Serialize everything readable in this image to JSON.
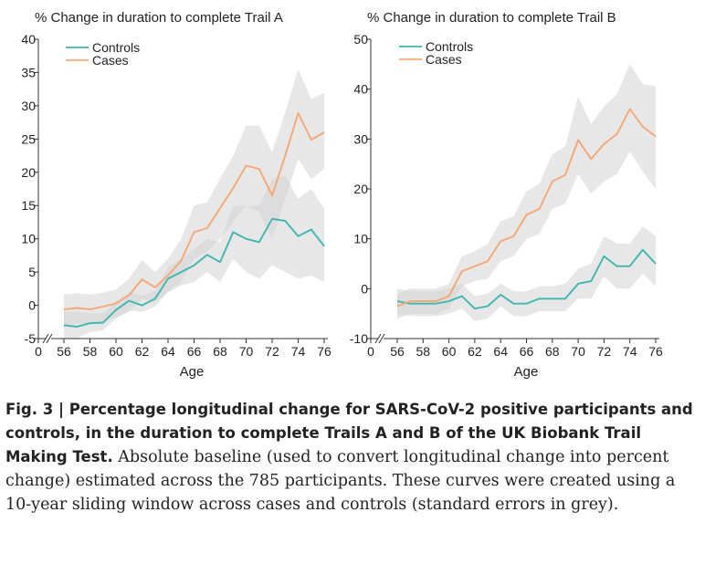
{
  "colors": {
    "controls": "#3fb6b0",
    "cases": "#f4a874",
    "band": "#d3d3d3"
  },
  "xlabel": "Age",
  "caption": {
    "fig_label": "Fig. 3",
    "separator": " | ",
    "bold": "Percentage longitudinal change for SARS-CoV-2 positive participants and controls, in the duration to complete Trails A and B of the UK Biobank Trail Making Test.",
    "body": " Absolute baseline (used to convert longitudinal change into percent change) estimated across the 785 participants. These curves were created using a 10-year sliding window across cases and controls (standard errors in grey)."
  },
  "chart_data": [
    {
      "type": "line",
      "title": "% Change in duration to complete Trail A",
      "xlabel": "Age",
      "ylabel": "",
      "xticks": [
        "0",
        "56",
        "58",
        "60",
        "62",
        "64",
        "66",
        "68",
        "70",
        "72",
        "74",
        "76"
      ],
      "xrange": [
        56,
        76
      ],
      "ylim": [
        -5,
        40
      ],
      "yticks": [
        -5,
        0,
        5,
        10,
        15,
        20,
        25,
        30,
        35,
        40
      ],
      "legend": "top-left",
      "x": [
        56,
        57,
        58,
        59,
        60,
        61,
        62,
        63,
        64,
        65,
        66,
        67,
        68,
        69,
        70,
        71,
        72,
        73,
        74,
        75,
        76
      ],
      "series": [
        {
          "name": "Controls",
          "values": [
            -3.0,
            -3.2,
            -2.7,
            -2.6,
            -0.7,
            0.7,
            0.0,
            1.0,
            4.0,
            5.0,
            6.0,
            7.6,
            6.5,
            11.0,
            10.0,
            9.5,
            13.0,
            12.7,
            10.4,
            11.4,
            8.9
          ],
          "lower": [
            -5.0,
            -5.0,
            -4.0,
            -3.8,
            -2.0,
            -0.8,
            -1.0,
            -0.2,
            2.0,
            3.0,
            3.5,
            5.0,
            3.5,
            7.0,
            5.0,
            4.0,
            6.0,
            5.0,
            4.0,
            4.5,
            3.5
          ],
          "upper": [
            -1.0,
            -1.0,
            -1.2,
            -1.2,
            0.6,
            2.0,
            1.5,
            2.2,
            5.8,
            7.0,
            8.5,
            10.0,
            9.5,
            15.0,
            15.0,
            15.0,
            19.0,
            19.5,
            16.0,
            17.5,
            14.5
          ]
        },
        {
          "name": "Cases",
          "values": [
            -0.6,
            -0.4,
            -0.6,
            -0.2,
            0.3,
            1.5,
            3.9,
            2.7,
            4.5,
            6.7,
            11.0,
            11.6,
            14.6,
            17.6,
            21.0,
            20.5,
            16.5,
            22.5,
            28.9,
            24.9,
            26.0
          ],
          "lower": [
            -3.0,
            -2.8,
            -2.8,
            -2.5,
            -1.8,
            -1.0,
            1.0,
            0.5,
            2.0,
            3.5,
            7.0,
            8.0,
            10.0,
            12.5,
            15.0,
            14.0,
            10.0,
            16.0,
            22.0,
            19.0,
            20.5
          ],
          "upper": [
            1.6,
            1.8,
            1.6,
            1.9,
            2.4,
            4.0,
            6.8,
            5.0,
            7.0,
            10.0,
            15.0,
            15.5,
            19.0,
            22.5,
            27.0,
            27.0,
            23.0,
            29.0,
            35.5,
            31.0,
            32.0
          ]
        }
      ]
    },
    {
      "type": "line",
      "title": "% Change in duration to complete Trail B",
      "xlabel": "Age",
      "ylabel": "",
      "xticks": [
        "0",
        "56",
        "58",
        "60",
        "62",
        "64",
        "66",
        "68",
        "70",
        "72",
        "74",
        "76"
      ],
      "xrange": [
        56,
        76
      ],
      "ylim": [
        -10,
        50
      ],
      "yticks": [
        -10,
        0,
        10,
        20,
        30,
        40,
        50
      ],
      "legend": "top-left",
      "x": [
        56,
        57,
        58,
        59,
        60,
        61,
        62,
        63,
        64,
        65,
        66,
        67,
        68,
        69,
        70,
        71,
        72,
        73,
        74,
        75,
        76
      ],
      "series": [
        {
          "name": "Controls",
          "values": [
            -2.5,
            -3.0,
            -3.0,
            -3.0,
            -2.5,
            -1.5,
            -4.0,
            -3.5,
            -1.2,
            -3.0,
            -3.0,
            -2.0,
            -2.0,
            -2.0,
            1.0,
            1.5,
            6.5,
            4.5,
            4.5,
            7.8,
            5.0
          ],
          "lower": [
            -5.0,
            -5.5,
            -5.5,
            -5.5,
            -5.0,
            -4.0,
            -6.5,
            -6.0,
            -3.5,
            -5.5,
            -5.5,
            -4.5,
            -4.5,
            -4.5,
            -2.0,
            -2.0,
            2.5,
            0.0,
            0.0,
            3.0,
            0.5
          ],
          "upper": [
            0.0,
            -0.5,
            -0.5,
            -0.5,
            0.0,
            1.0,
            -1.5,
            -1.0,
            1.0,
            -0.5,
            -0.5,
            0.5,
            0.5,
            1.0,
            4.0,
            5.0,
            10.5,
            9.0,
            9.0,
            12.5,
            10.5
          ]
        },
        {
          "name": "Cases",
          "values": [
            -3.5,
            -2.5,
            -2.5,
            -2.5,
            -1.5,
            3.5,
            4.5,
            5.5,
            9.5,
            10.5,
            14.8,
            16.0,
            21.5,
            22.8,
            29.8,
            26.0,
            29.0,
            31.0,
            36.0,
            32.5,
            30.5
          ],
          "lower": [
            -6.0,
            -5.0,
            -5.0,
            -5.0,
            -4.0,
            0.5,
            1.5,
            2.0,
            5.5,
            6.5,
            10.0,
            11.0,
            16.0,
            17.0,
            23.0,
            19.0,
            21.5,
            23.0,
            27.5,
            23.5,
            20.0
          ],
          "upper": [
            -1.0,
            0.0,
            0.0,
            0.0,
            1.0,
            6.5,
            7.5,
            9.0,
            13.5,
            14.5,
            19.5,
            21.0,
            27.0,
            28.5,
            38.5,
            33.0,
            36.5,
            39.0,
            45.0,
            41.0,
            40.5
          ]
        }
      ]
    }
  ]
}
